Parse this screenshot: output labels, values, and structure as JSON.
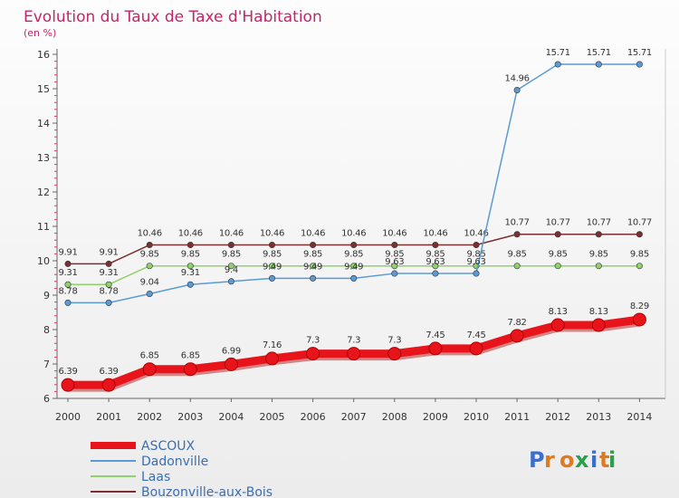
{
  "header": {
    "title": "Evolution du Taux de Taxe d'Habitation",
    "subtitle": "(en %)"
  },
  "brand": "Proxiti",
  "chart_data": {
    "type": "line",
    "title": "Evolution du Taux de Taxe d'Habitation",
    "ylabel": "(en %)",
    "x": [
      "2000",
      "2001",
      "2002",
      "2003",
      "2004",
      "2005",
      "2006",
      "2007",
      "2008",
      "2009",
      "2010",
      "2011",
      "2012",
      "2013",
      "2014"
    ],
    "ylim": [
      6,
      16
    ],
    "yticks": [
      "6",
      "7",
      "8",
      "9",
      "10",
      "11",
      "12",
      "13",
      "14",
      "15",
      "16"
    ],
    "grid": false,
    "legend": "bottom-left",
    "series": [
      {
        "name": "Bouzonville-aux-Bois",
        "color": "#7a3030",
        "values": [
          9.91,
          9.91,
          10.46,
          10.46,
          10.46,
          10.46,
          10.46,
          10.46,
          10.46,
          10.46,
          10.46,
          10.77,
          10.77,
          10.77,
          10.77
        ],
        "labels": [
          "9.91",
          "9.91",
          "10.46",
          "10.46",
          "10.46",
          "10.46",
          "10.46",
          "10.46",
          "10.46",
          "10.46",
          "10.46",
          "10.77",
          "10.77",
          "10.77",
          "10.77"
        ]
      },
      {
        "name": "Laas",
        "color": "#8fd16a",
        "values": [
          9.31,
          9.31,
          9.85,
          9.85,
          9.85,
          9.85,
          9.85,
          9.85,
          9.85,
          9.85,
          9.85,
          9.85,
          9.85,
          9.85,
          9.85
        ],
        "labels": [
          "9.31",
          "9.31",
          "9.85",
          "9.85",
          "9.85",
          "9.85",
          "9.85",
          "9.85",
          "9.85",
          "9.85",
          "9.85",
          "9.85",
          "9.85",
          "9.85",
          "9.85"
        ]
      },
      {
        "name": "Dadonville",
        "color": "#5b9bd5",
        "values": [
          8.78,
          8.78,
          9.04,
          9.31,
          9.4,
          9.49,
          9.49,
          9.49,
          9.63,
          9.63,
          9.63,
          14.96,
          15.71,
          15.71,
          15.71
        ],
        "labels": [
          "8.78",
          "8.78",
          "9.04",
          "9.31",
          "9.4",
          "9.49",
          "9.49",
          "9.49",
          "9.63",
          "9.63",
          "9.63",
          "14.96",
          "15.71",
          "15.71",
          "15.71"
        ]
      },
      {
        "name": "ASCOUX",
        "color": "#e8141b",
        "values": [
          6.39,
          6.39,
          6.85,
          6.85,
          6.99,
          7.16,
          7.3,
          7.3,
          7.3,
          7.45,
          7.45,
          7.82,
          8.13,
          8.13,
          8.29
        ],
        "labels": [
          "6.39",
          "6.39",
          "6.85",
          "6.85",
          "6.99",
          "7.16",
          "7.3",
          "7.3",
          "7.3",
          "7.45",
          "7.45",
          "7.82",
          "8.13",
          "8.13",
          "8.29"
        ]
      }
    ],
    "legend_order": [
      "ASCOUX",
      "Dadonville",
      "Laas",
      "Bouzonville-aux-Bois"
    ]
  }
}
